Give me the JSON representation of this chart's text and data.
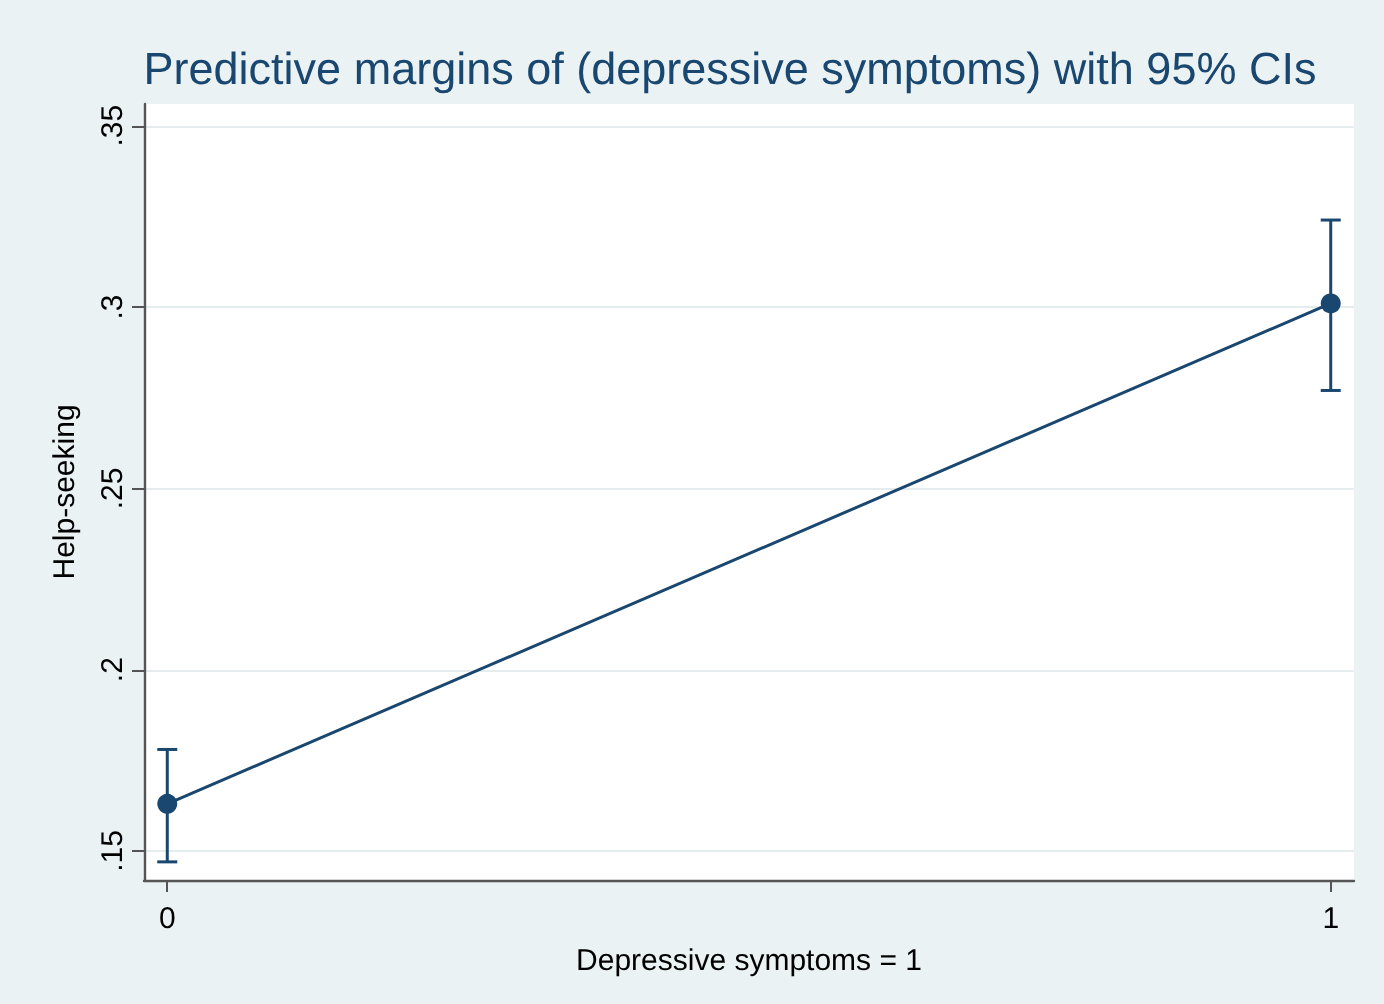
{
  "chart_data": {
    "type": "line",
    "title": "Predictive margins of (depressive symptoms) with 95% CIs",
    "xlabel": "Depressive symptoms = 1",
    "ylabel": "Help-seeking",
    "x": [
      0,
      1
    ],
    "values": [
      0.163,
      0.301
    ],
    "errors": [
      [
        0.147,
        0.178
      ],
      [
        0.277,
        0.324
      ]
    ],
    "color": "#1a476f",
    "xlim": [
      -0.02,
      1.02
    ],
    "xticks": [
      0,
      1
    ],
    "ylim": [
      0.142,
      0.356
    ],
    "yticks": [
      {
        "value": 0.15,
        "label": ".15"
      },
      {
        "value": 0.2,
        "label": ".2"
      },
      {
        "value": 0.25,
        "label": ".25"
      },
      {
        "value": 0.3,
        "label": ".3"
      },
      {
        "value": 0.35,
        "label": ".35"
      }
    ],
    "grid": "y",
    "marker": "circle",
    "line_style": "solid"
  }
}
